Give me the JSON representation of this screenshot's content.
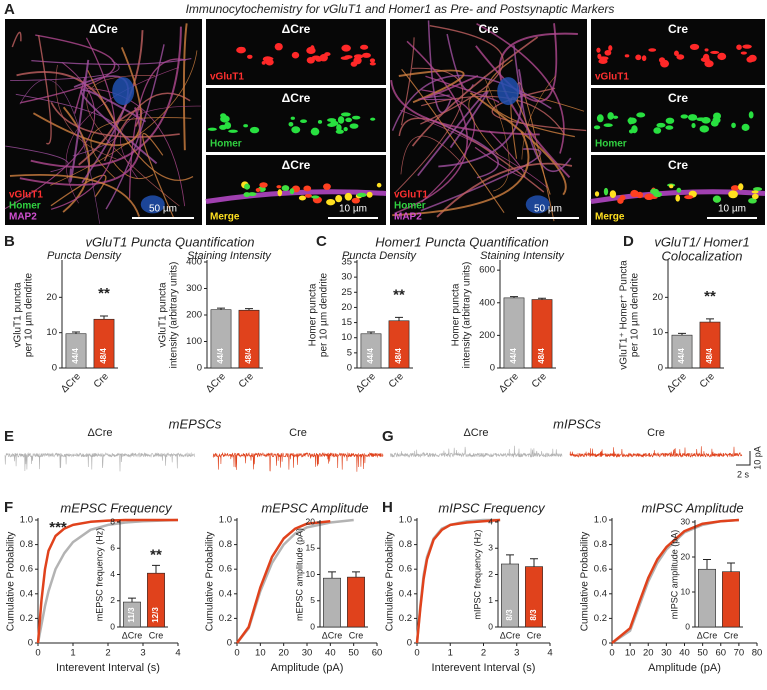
{
  "panels": [
    {
      "letter": "A",
      "title": "Immunocytochemistry for vGluT1 and Homer1 as Pre- and Postsynaptic Markers"
    },
    {
      "letter": "B",
      "title": "vGluT1 Puncta Quantification"
    },
    {
      "letter": "C",
      "title": "Homer1 Puncta Quantification"
    },
    {
      "letter": "D",
      "title": [
        "vGluT1/ Homer1",
        "Colocalization"
      ]
    },
    {
      "letter": "E",
      "title": "mEPSCs"
    },
    {
      "letter": "F"
    },
    {
      "letter": "G",
      "title": "mIPSCs"
    },
    {
      "letter": "H"
    }
  ],
  "tiles": [
    {
      "condition": "ΔCre",
      "labels": [
        {
          "text": "vGluT1",
          "color": "#ff3030"
        },
        {
          "text": "Homer",
          "color": "#30d040"
        },
        {
          "text": "MAP2",
          "color": "#d050d0"
        }
      ],
      "scale_bar": "50 µm"
    },
    {
      "condition": "ΔCre",
      "labels": [
        {
          "text": "vGluT1",
          "color": "#ff3030"
        }
      ]
    },
    {
      "condition": "ΔCre",
      "labels": [
        {
          "text": "Homer",
          "color": "#30d040"
        }
      ]
    },
    {
      "condition": "ΔCre",
      "labels": [
        {
          "text": "Merge",
          "color": "#ffe020"
        }
      ],
      "scale_bar": "10 µm"
    },
    {
      "condition": "Cre",
      "labels": [
        {
          "text": "vGluT1",
          "color": "#ff3030"
        },
        {
          "text": "Homer",
          "color": "#30d040"
        },
        {
          "text": "MAP2",
          "color": "#d050d0"
        }
      ],
      "scale_bar": "50 µm"
    },
    {
      "condition": "Cre",
      "labels": [
        {
          "text": "vGluT1",
          "color": "#ff3030"
        }
      ]
    },
    {
      "condition": "Cre",
      "labels": [
        {
          "text": "Homer",
          "color": "#30d040"
        }
      ]
    },
    {
      "condition": "Cre",
      "labels": [
        {
          "text": "Merge",
          "color": "#ffe020"
        }
      ],
      "scale_bar": "10 µm"
    }
  ],
  "traces": [
    {
      "name": "ΔCre",
      "color": "#b3b3b3"
    },
    {
      "name": "Cre",
      "color": "#e0421c"
    },
    {
      "name": "ΔCre",
      "color": "#b3b3b3"
    },
    {
      "name": "Cre",
      "color": "#e0421c"
    }
  ],
  "trace_scale_bar": {
    "y": "10 pA",
    "x": "2 s"
  },
  "chart_data": [
    {
      "type": "bar",
      "title": "Puncta Density",
      "ylabel": [
        "vGluT1 puncta",
        "per 10 µm dendrite"
      ],
      "categories": [
        "ΔCre",
        "Cre"
      ],
      "values": [
        9.7,
        13.8
      ],
      "errors": [
        0.5,
        0.9
      ],
      "colors": [
        "#b3b3b3",
        "#e0421c"
      ],
      "bar_labels": [
        "44/4",
        "48/4"
      ],
      "annotation": "**",
      "ylim": [
        0,
        30
      ],
      "yticks": [
        0,
        10,
        20
      ]
    },
    {
      "type": "bar",
      "title": "Staining Intensity",
      "ylabel": [
        "vGluT1 puncta",
        "intensity (arbitrary units)"
      ],
      "categories": [
        "ΔCre",
        "Cre"
      ],
      "values": [
        220,
        218
      ],
      "errors": [
        6,
        6
      ],
      "colors": [
        "#b3b3b3",
        "#e0421c"
      ],
      "bar_labels": [
        "44/4",
        "48/4"
      ],
      "ylim": [
        0,
        400
      ],
      "yticks": [
        0,
        100,
        200,
        300,
        400
      ]
    },
    {
      "type": "bar",
      "title": "Puncta Density",
      "ylabel": [
        "Homer puncta",
        "per 10 µm dendrite"
      ],
      "categories": [
        "ΔCre",
        "Cre"
      ],
      "values": [
        11.3,
        15.6
      ],
      "errors": [
        0.6,
        1.1
      ],
      "colors": [
        "#b3b3b3",
        "#e0421c"
      ],
      "bar_labels": [
        "44/4",
        "48/4"
      ],
      "annotation": "**",
      "ylim": [
        0,
        35
      ],
      "yticks": [
        0,
        5,
        10,
        15,
        20,
        25,
        30,
        35
      ]
    },
    {
      "type": "bar",
      "title": "Staining Intensity",
      "ylabel": [
        "Homer puncta",
        "intensity (arbitrary units)"
      ],
      "categories": [
        "ΔCre",
        "Cre"
      ],
      "values": [
        430,
        420
      ],
      "errors": [
        8,
        8
      ],
      "colors": [
        "#b3b3b3",
        "#e0421c"
      ],
      "bar_labels": [
        "44/4",
        "48/4"
      ],
      "ylim": [
        0,
        650
      ],
      "yticks": [
        0,
        200,
        400,
        600
      ]
    },
    {
      "type": "bar",
      "ylabel": [
        "vGluT1⁺ Homer⁺ Puncta",
        "per 10 µm dendrite"
      ],
      "categories": [
        "ΔCre",
        "Cre"
      ],
      "values": [
        9.3,
        13.0
      ],
      "errors": [
        0.5,
        0.9
      ],
      "colors": [
        "#b3b3b3",
        "#e0421c"
      ],
      "bar_labels": [
        "44/4",
        "48/4"
      ],
      "annotation": "**",
      "ylim": [
        0,
        30
      ],
      "yticks": [
        0,
        10,
        20
      ]
    },
    {
      "type": "line",
      "title": "mEPSC Frequency",
      "xlabel": "Interevent Interval (s)",
      "ylabel": [
        "Cumulative Probability"
      ],
      "annotation": "***",
      "x": [
        0,
        0.1,
        0.2,
        0.3,
        0.5,
        0.75,
        1,
        1.5,
        2,
        2.5,
        3,
        4
      ],
      "series": [
        {
          "name": "ΔCre",
          "color": "#b3b3b3",
          "values": [
            0,
            0.15,
            0.3,
            0.42,
            0.6,
            0.73,
            0.82,
            0.92,
            0.96,
            0.98,
            0.99,
            1
          ]
        },
        {
          "name": "Cre",
          "color": "#e0421c",
          "values": [
            0,
            0.35,
            0.6,
            0.75,
            0.87,
            0.93,
            0.96,
            0.985,
            0.995,
            1,
            1,
            1
          ]
        }
      ],
      "xlim": [
        0,
        4
      ],
      "xticks": [
        0,
        1,
        2,
        3,
        4
      ],
      "ylim": [
        0,
        1
      ],
      "yticks": [
        0,
        0.2,
        0.4,
        0.6,
        0.8,
        {
          "value": 1,
          "label": "1.0"
        }
      ]
    },
    {
      "type": "bar",
      "ylabel": [
        "mEPSC frequency (Hz)"
      ],
      "categories": [
        "ΔCre",
        "Cre"
      ],
      "values": [
        1.9,
        4.1
      ],
      "errors": [
        0.3,
        0.6
      ],
      "colors": [
        "#b3b3b3",
        "#e0421c"
      ],
      "bar_labels": [
        "11/3",
        "12/3"
      ],
      "annotation": "**",
      "ylim": [
        0,
        8
      ],
      "yticks": [
        0,
        2,
        4,
        6,
        8
      ]
    },
    {
      "type": "line",
      "title": "mEPSC Amplitude",
      "xlabel": "Amplitude (pA)",
      "ylabel": [
        "Cumulative Probability"
      ],
      "x": [
        0,
        5,
        10,
        15,
        20,
        25,
        30,
        40,
        50
      ],
      "series": [
        {
          "name": "ΔCre",
          "color": "#b3b3b3",
          "values": [
            0,
            0.12,
            0.42,
            0.65,
            0.8,
            0.89,
            0.94,
            0.98,
            1
          ]
        },
        {
          "name": "Cre",
          "color": "#e0421c",
          "values": [
            0,
            0.13,
            0.45,
            0.7,
            0.85,
            0.93,
            0.97,
            0.99,
            null
          ]
        }
      ],
      "xlim": [
        0,
        60
      ],
      "xticks": [
        0,
        10,
        20,
        30,
        40,
        50,
        60
      ],
      "ylim": [
        0,
        1
      ],
      "yticks": [
        0,
        0.2,
        0.4,
        0.6,
        0.8,
        {
          "value": 1,
          "label": "1.0"
        }
      ]
    },
    {
      "type": "bar",
      "ylabel": [
        "mEPSC amplitude (pA)"
      ],
      "categories": [
        "ΔCre",
        "Cre"
      ],
      "values": [
        9.3,
        9.5
      ],
      "errors": [
        1.2,
        1.0
      ],
      "colors": [
        "#b3b3b3",
        "#e0421c"
      ],
      "ylim": [
        0,
        20
      ],
      "yticks": [
        0,
        5,
        10,
        15,
        20
      ]
    },
    {
      "type": "line",
      "title": "mIPSC Frequency",
      "xlabel": "Interevent Interval (s)",
      "ylabel": [
        "Cumulative Probability"
      ],
      "x": [
        0,
        0.1,
        0.2,
        0.3,
        0.5,
        0.75,
        1,
        1.5,
        2,
        2.5
      ],
      "series": [
        {
          "name": "ΔCre",
          "color": "#b3b3b3",
          "values": [
            0,
            0.3,
            0.55,
            0.7,
            0.85,
            0.93,
            0.96,
            0.99,
            1,
            1
          ]
        },
        {
          "name": "Cre",
          "color": "#e0421c",
          "values": [
            0,
            0.28,
            0.52,
            0.68,
            0.84,
            0.92,
            0.96,
            0.98,
            0.99,
            1
          ]
        }
      ],
      "xlim": [
        0,
        4
      ],
      "xticks": [
        0,
        1,
        2,
        3,
        4
      ],
      "ylim": [
        0,
        1
      ],
      "yticks": [
        0,
        0.2,
        0.4,
        0.6,
        0.8,
        {
          "value": 1,
          "label": "1.0"
        }
      ]
    },
    {
      "type": "bar",
      "ylabel": [
        "mIPSC frequency (Hz)"
      ],
      "categories": [
        "ΔCre",
        "Cre"
      ],
      "values": [
        2.4,
        2.3
      ],
      "errors": [
        0.35,
        0.3
      ],
      "colors": [
        "#b3b3b3",
        "#e0421c"
      ],
      "bar_labels": [
        "8/3",
        "8/3"
      ],
      "ylim": [
        0,
        4
      ],
      "yticks": [
        0,
        1,
        2,
        3,
        4
      ]
    },
    {
      "type": "line",
      "title": "mIPSC Amplitude",
      "xlabel": "Amplitude (pA)",
      "ylabel": [
        "Cumulative Probability"
      ],
      "x": [
        0,
        10,
        15,
        20,
        25,
        30,
        40,
        50,
        60,
        70
      ],
      "series": [
        {
          "name": "ΔCre",
          "color": "#b3b3b3",
          "values": [
            0,
            0.1,
            0.3,
            0.5,
            0.65,
            0.76,
            0.9,
            0.96,
            0.99,
            1
          ]
        },
        {
          "name": "Cre",
          "color": "#e0421c",
          "values": [
            0,
            0.12,
            0.33,
            0.53,
            0.68,
            0.78,
            0.91,
            0.97,
            0.99,
            1
          ]
        }
      ],
      "xlim": [
        0,
        80
      ],
      "xticks": [
        0,
        10,
        20,
        30,
        40,
        50,
        60,
        70,
        80
      ],
      "ylim": [
        0,
        1
      ],
      "yticks": [
        0,
        0.2,
        0.4,
        0.6,
        0.8,
        {
          "value": 1,
          "label": "1.0"
        }
      ]
    },
    {
      "type": "bar",
      "ylabel": [
        "mIPSC amplitude (pA)"
      ],
      "categories": [
        "ΔCre",
        "Cre"
      ],
      "values": [
        16.5,
        15.8
      ],
      "errors": [
        2.8,
        2.5
      ],
      "colors": [
        "#b3b3b3",
        "#e0421c"
      ],
      "ylim": [
        0,
        30
      ],
      "yticks": [
        0,
        10,
        20,
        30
      ]
    }
  ]
}
